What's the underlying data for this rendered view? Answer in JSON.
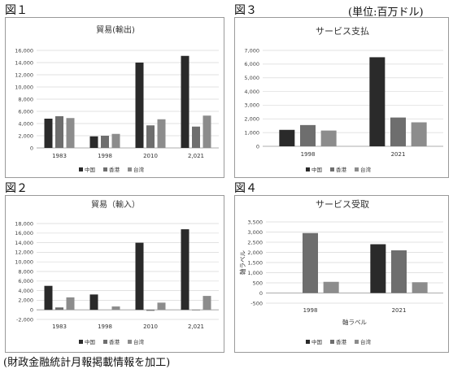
{
  "figure_labels": [
    "図１",
    "図３",
    "図２",
    "図４"
  ],
  "unit_note": "(単位:百万ドル)",
  "source_note": "(財政金融統計月報掲載情報を加工)",
  "colors": {
    "中国": "#2a2a2a",
    "香港": "#6e6e6e",
    "台湾": "#8c8c8c",
    "grid": "#d9d9d9",
    "axis": "#9a9a9a"
  },
  "chart_data": [
    {
      "type": "bar",
      "title": "貿易(輸出)",
      "categories": [
        "1983",
        "1998",
        "2010",
        "2,021"
      ],
      "series": [
        {
          "name": "中国",
          "values": [
            4800,
            1900,
            14000,
            15100
          ]
        },
        {
          "name": "香港",
          "values": [
            5200,
            2000,
            3700,
            3500
          ]
        },
        {
          "name": "台湾",
          "values": [
            4900,
            2300,
            4700,
            5300
          ]
        }
      ],
      "yticks": [
        "0",
        "2,000",
        "4,000",
        "6,000",
        "8,000",
        "10,000",
        "12,000",
        "14,000",
        "16,000"
      ],
      "ylim": [
        0,
        16000
      ],
      "legend": "bottom",
      "grid": true,
      "xlabel": "",
      "ylabel": ""
    },
    {
      "type": "bar",
      "title": "サービス支払",
      "categories": [
        "1998",
        "2021"
      ],
      "series": [
        {
          "name": "中国",
          "values": [
            1200,
            6500
          ]
        },
        {
          "name": "香港",
          "values": [
            1550,
            2100
          ]
        },
        {
          "name": "台湾",
          "values": [
            1150,
            1750
          ]
        }
      ],
      "yticks": [
        "0",
        "1,000",
        "2,000",
        "3,000",
        "4,000",
        "5,000",
        "6,000",
        "7,000"
      ],
      "ylim": [
        0,
        7000
      ],
      "legend": "bottom",
      "grid": true,
      "xlabel": "",
      "ylabel": ""
    },
    {
      "type": "bar",
      "title": "貿易（輸入）",
      "categories": [
        "1983",
        "1998",
        "2010",
        "2,021"
      ],
      "series": [
        {
          "name": "中国",
          "values": [
            5000,
            3200,
            14000,
            16800
          ]
        },
        {
          "name": "香港",
          "values": [
            500,
            0,
            -200,
            -100
          ]
        },
        {
          "name": "台湾",
          "values": [
            2600,
            700,
            1500,
            2900
          ]
        }
      ],
      "yticks": [
        "-2,000",
        "0",
        "2,000",
        "4,000",
        "6,000",
        "8,000",
        "10,000",
        "12,000",
        "14,000",
        "16,000",
        "18,000"
      ],
      "ylim": [
        -2000,
        18000
      ],
      "legend": "bottom",
      "grid": true,
      "xlabel": "",
      "ylabel": ""
    },
    {
      "type": "bar",
      "title": "サービス受取",
      "categories": [
        "1998",
        "2021"
      ],
      "series": [
        {
          "name": "中国",
          "values": [
            0,
            2400
          ]
        },
        {
          "name": "香港",
          "values": [
            2950,
            2100
          ]
        },
        {
          "name": "台湾",
          "values": [
            550,
            530
          ]
        }
      ],
      "yticks": [
        "-500",
        "0",
        "500",
        "1,000",
        "1,500",
        "2,000",
        "2,500",
        "3,000",
        "3,500"
      ],
      "ylim": [
        -500,
        3500
      ],
      "legend": "bottom",
      "grid": true,
      "xlabel": "軸ラベル",
      "ylabel": "軸ラベル"
    }
  ]
}
